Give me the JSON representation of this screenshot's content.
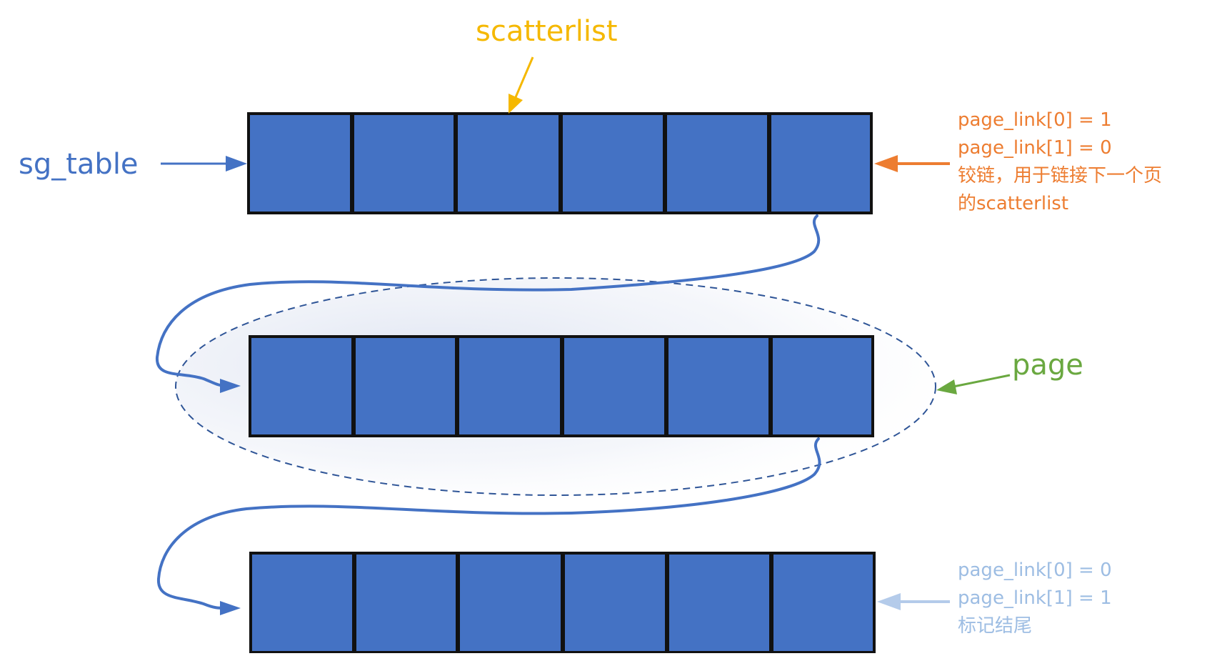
{
  "labels": {
    "scatterlist": "scatterlist",
    "sg_table": "sg_table",
    "page": "page"
  },
  "link_note": {
    "lines": [
      "page_link[0] = 1",
      "page_link[1] = 0",
      "铰链，用于链接下一个页",
      "的scatterlist"
    ]
  },
  "end_note": {
    "lines": [
      "page_link[0] = 0",
      "page_link[1] = 1",
      "标记结尾"
    ]
  },
  "diagram": {
    "rows": 3,
    "cells_per_row": 6
  },
  "colors": {
    "cell_fill": "#4472c4",
    "cell_border": "#111111",
    "scatterlist": "#f5b800",
    "sg_table": "#4472c4",
    "page": "#6aa840",
    "link_note": "#ed7d31",
    "end_note": "#9dbde3",
    "chain": "#4472c4",
    "ellipse": "#2f5597"
  }
}
